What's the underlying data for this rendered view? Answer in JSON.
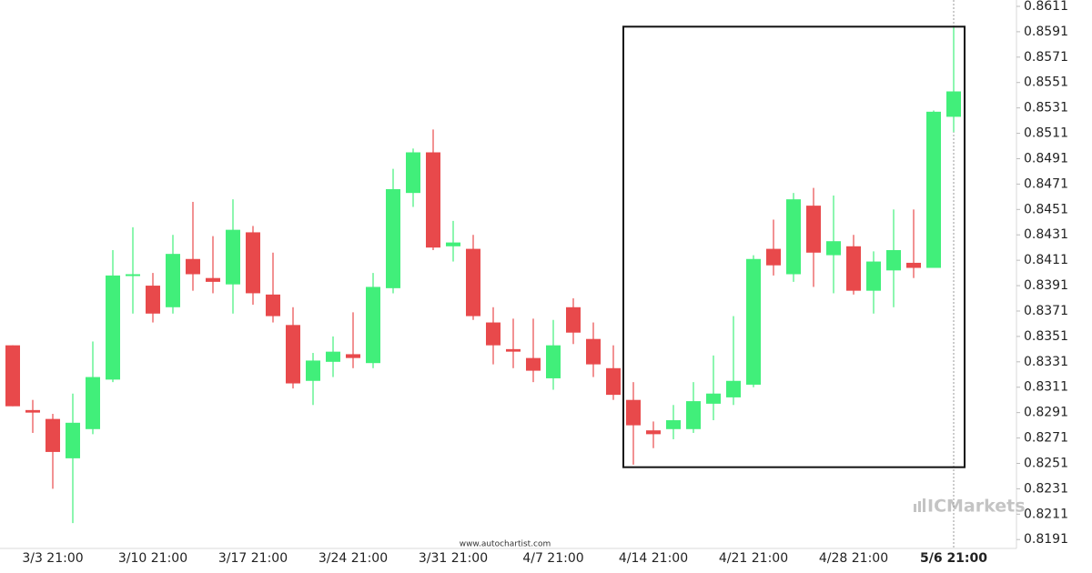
{
  "chart_data": {
    "type": "candlestick",
    "categories": [
      null,
      null,
      "3/3 21:00",
      null,
      null,
      null,
      null,
      "3/10 21:00",
      null,
      null,
      null,
      null,
      "3/17 21:00",
      null,
      null,
      null,
      null,
      "3/24 21:00",
      null,
      null,
      null,
      null,
      "3/31 21:00",
      null,
      null,
      null,
      null,
      "4/7 21:00",
      null,
      null,
      null,
      null,
      "4/14 21:00",
      null,
      null,
      null,
      null,
      "4/21 21:00",
      null,
      null,
      null,
      null,
      "4/28 21:00",
      null,
      null,
      null,
      null,
      "5/6 21:00"
    ],
    "open": [
      0.8344,
      0.8293,
      0.8286,
      0.8255,
      0.8278,
      0.8317,
      0.8399,
      0.8391,
      0.8374,
      0.8412,
      0.8397,
      0.8392,
      0.8433,
      0.8384,
      0.836,
      0.8316,
      0.8331,
      0.8337,
      0.833,
      0.8389,
      0.8464,
      0.8496,
      0.8422,
      0.842,
      0.8362,
      0.8341,
      0.8334,
      0.8318,
      0.8374,
      0.8349,
      0.8326,
      0.8301,
      0.8277,
      0.8278,
      0.8278,
      0.8298,
      0.8303,
      0.8313,
      0.842,
      0.84,
      0.8454,
      0.8415,
      0.8422,
      0.8387,
      0.8403,
      0.8409,
      0.8405,
      0.8524
    ],
    "high": [
      0.8344,
      0.8301,
      0.829,
      0.8306,
      0.8347,
      0.8419,
      0.8437,
      0.8401,
      0.8431,
      0.8457,
      0.843,
      0.8459,
      0.8438,
      0.8417,
      0.8374,
      0.8338,
      0.8351,
      0.837,
      0.8401,
      0.8483,
      0.8499,
      0.8514,
      0.8442,
      0.8431,
      0.8374,
      0.8365,
      0.8365,
      0.8364,
      0.8381,
      0.8362,
      0.8344,
      0.8315,
      0.8284,
      0.8297,
      0.8315,
      0.8336,
      0.8367,
      0.8415,
      0.8443,
      0.8464,
      0.8468,
      0.8462,
      0.8431,
      0.8418,
      0.8451,
      0.8451,
      0.8529,
      0.8595
    ],
    "low": [
      0.8296,
      0.8275,
      0.8231,
      0.8204,
      0.8274,
      0.8315,
      0.8369,
      0.8362,
      0.8369,
      0.8387,
      0.8385,
      0.8369,
      0.8376,
      0.8362,
      0.831,
      0.8297,
      0.8319,
      0.8326,
      0.8326,
      0.8385,
      0.8453,
      0.8419,
      0.841,
      0.8364,
      0.8329,
      0.8326,
      0.8315,
      0.8309,
      0.8345,
      0.8319,
      0.8301,
      0.825,
      0.8263,
      0.827,
      0.8275,
      0.8285,
      0.8297,
      0.8311,
      0.8399,
      0.8394,
      0.839,
      0.8385,
      0.8384,
      0.8369,
      0.8374,
      0.8397,
      0.8405,
      0.8512
    ],
    "close": [
      0.8296,
      0.8291,
      0.826,
      0.8283,
      0.8319,
      0.8399,
      0.84,
      0.8369,
      0.8416,
      0.84,
      0.8394,
      0.8435,
      0.8385,
      0.8367,
      0.8314,
      0.8332,
      0.8339,
      0.8334,
      0.839,
      0.8467,
      0.8496,
      0.8421,
      0.8425,
      0.8367,
      0.8344,
      0.8339,
      0.8324,
      0.8344,
      0.8354,
      0.8329,
      0.8305,
      0.8281,
      0.8274,
      0.8285,
      0.83,
      0.8306,
      0.8316,
      0.8412,
      0.8407,
      0.8459,
      0.8417,
      0.8426,
      0.8387,
      0.841,
      0.8419,
      0.8405,
      0.8528,
      0.8544
    ],
    "up_color": "#41ef7a",
    "down_color": "#e8494b",
    "ylim": [
      0.8184,
      0.8616
    ],
    "yticks": [
      0.8611,
      0.8591,
      0.8571,
      0.8551,
      0.8531,
      0.8511,
      0.8491,
      0.8471,
      0.8451,
      0.8431,
      0.8411,
      0.8391,
      0.8371,
      0.8351,
      0.8331,
      0.8311,
      0.8291,
      0.8271,
      0.8251,
      0.8231,
      0.8211,
      0.8191
    ],
    "grid": false,
    "pattern_box": {
      "start": 31,
      "end": 47,
      "top": 0.8595,
      "bottom": 0.8248
    },
    "watermark": "www.autochartist.com",
    "brand": "ICMarkets"
  }
}
